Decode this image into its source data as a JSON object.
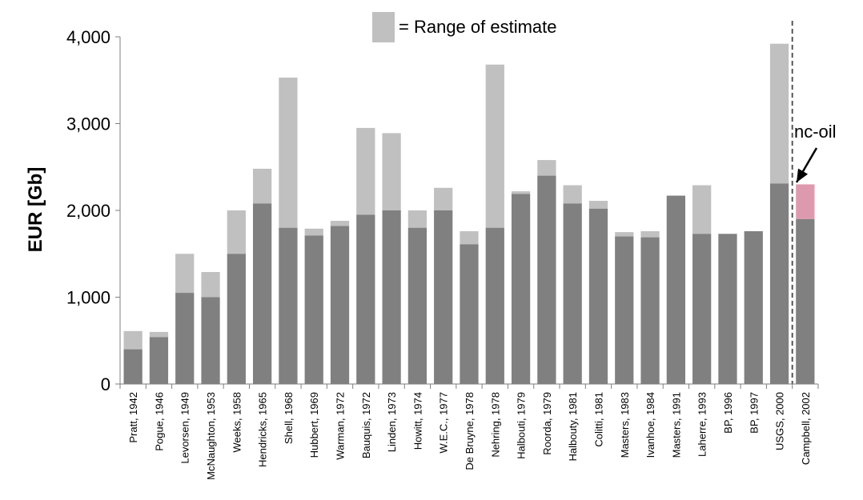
{
  "chart_data": {
    "type": "bar",
    "ylabel": "EUR [Gb]",
    "ylim": [
      0,
      4000
    ],
    "yticks": [
      0,
      1000,
      2000,
      3000,
      4000
    ],
    "ytick_labels": [
      "0",
      "1,000",
      "2,000",
      "3,000",
      "4,000"
    ],
    "grid": false,
    "legend": {
      "label": "= Range of estimate",
      "placement": "top-center"
    },
    "categories": [
      "Pratt, 1942",
      "Pogue, 1946",
      "Levorsen, 1949",
      "McNaughton, 1953",
      "Weeks, 1958",
      "Hendricks, 1965",
      "Shell, 1968",
      "Hubbert, 1969",
      "Warman, 1972",
      "Bauquis, 1972",
      "Linden, 1973",
      "Howitt, 1974",
      "W.E.C., 1977",
      "De Bruyne, 1978",
      "Nehring, 1978",
      "Halbouti, 1979",
      "Roorda, 1979",
      "Halbouty, 1981",
      "Colitti, 1981",
      "Masters, 1983",
      "Ivanhoe, 1984",
      "Masters, 1991",
      "Laherre, 1993",
      "BP, 1996",
      "BP, 1997",
      "USGS, 2000",
      "Campbell, 2002"
    ],
    "series": [
      {
        "values": [
          400,
          540,
          1050,
          1000,
          1500,
          2080,
          1800,
          1710,
          1820,
          1950,
          2000,
          1800,
          2000,
          1610,
          1800,
          2190,
          2400,
          2080,
          2020,
          1700,
          1690,
          2170,
          1730,
          1730,
          1760,
          2310,
          1900
        ]
      },
      {
        "name": "Range of estimate",
        "values": [
          610,
          600,
          1500,
          1290,
          2000,
          2480,
          3530,
          1790,
          1880,
          2950,
          2890,
          2000,
          2260,
          1760,
          3680,
          2220,
          2580,
          2290,
          2110,
          1750,
          1760,
          2170,
          2290,
          1730,
          1760,
          3920,
          1900
        ]
      },
      {
        "values": [
          null,
          null,
          null,
          null,
          null,
          null,
          null,
          null,
          null,
          null,
          null,
          null,
          null,
          null,
          null,
          null,
          null,
          null,
          null,
          null,
          null,
          null,
          null,
          null,
          null,
          null,
          2300
        ]
      }
    ],
    "annotations": [
      {
        "text": "nc-oil",
        "category": "Campbell, 2002"
      }
    ],
    "colors": {
      "base": "#808080",
      "range": "#c0c0c0",
      "ncoil": "#dd9aae",
      "divider": "#555555"
    }
  }
}
